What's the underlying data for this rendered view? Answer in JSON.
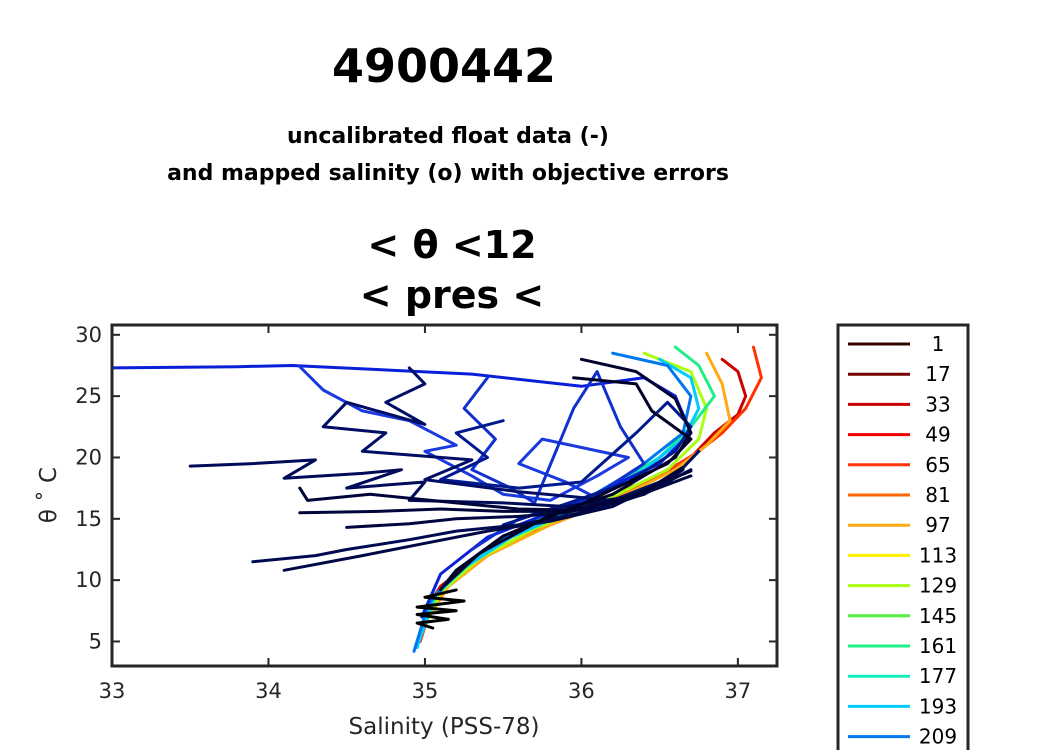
{
  "title": "4900442",
  "subtitle_lines": [
    "uncalibrated float data (-)",
    "and mapped salinity (o) with objective errors"
  ],
  "plot_title_lines": [
    "< θ <12",
    "< pres <"
  ],
  "chart_data": {
    "type": "line",
    "xlabel": "Salinity (PSS-78)",
    "ylabel": "θ ˚ C",
    "xlim": [
      33,
      37.25
    ],
    "ylim": [
      3,
      30.8
    ],
    "xticks": [
      33,
      34,
      35,
      36,
      37
    ],
    "yticks": [
      5,
      10,
      15,
      20,
      25,
      30
    ],
    "legend_position": "right",
    "legend": [
      {
        "label": "1",
        "color": "#330000"
      },
      {
        "label": "17",
        "color": "#770000"
      },
      {
        "label": "33",
        "color": "#cc0000"
      },
      {
        "label": "49",
        "color": "#ee0000"
      },
      {
        "label": "65",
        "color": "#ff3300"
      },
      {
        "label": "81",
        "color": "#ff6600"
      },
      {
        "label": "97",
        "color": "#ffaa11"
      },
      {
        "label": "113",
        "color": "#ffee00"
      },
      {
        "label": "129",
        "color": "#aaff11"
      },
      {
        "label": "145",
        "color": "#55ee44"
      },
      {
        "label": "161",
        "color": "#22ee88"
      },
      {
        "label": "177",
        "color": "#11eebb"
      },
      {
        "label": "193",
        "color": "#00ccff"
      },
      {
        "label": "209",
        "color": "#0077ee"
      }
    ],
    "series": [
      {
        "color": "#cc0000",
        "points": [
          [
            36.9,
            28
          ],
          [
            37.0,
            27
          ],
          [
            37.05,
            25
          ],
          [
            37.0,
            23.5
          ],
          [
            36.85,
            22
          ],
          [
            36.7,
            20
          ],
          [
            36.4,
            18
          ],
          [
            36.0,
            16
          ],
          [
            35.6,
            14
          ],
          [
            35.3,
            11.5
          ],
          [
            35.1,
            9.5
          ],
          [
            35.0,
            7.5
          ],
          [
            34.98,
            5.5
          ]
        ]
      },
      {
        "color": "#ff3300",
        "points": [
          [
            37.1,
            29
          ],
          [
            37.15,
            26.5
          ],
          [
            37.05,
            24
          ],
          [
            36.9,
            22
          ],
          [
            36.75,
            20.5
          ],
          [
            36.5,
            18.5
          ],
          [
            36.1,
            16
          ],
          [
            35.7,
            14
          ],
          [
            35.4,
            12
          ],
          [
            35.15,
            9.5
          ],
          [
            35.02,
            7
          ],
          [
            34.97,
            5
          ]
        ]
      },
      {
        "color": "#ffaa11",
        "points": [
          [
            36.8,
            28.5
          ],
          [
            36.9,
            26
          ],
          [
            36.95,
            23
          ],
          [
            36.8,
            21
          ],
          [
            36.6,
            19
          ],
          [
            36.2,
            16.5
          ],
          [
            35.8,
            14.5
          ],
          [
            35.4,
            12
          ],
          [
            35.15,
            9.5
          ],
          [
            35.0,
            6.5
          ]
        ]
      },
      {
        "color": "#aaff11",
        "points": [
          [
            36.4,
            28.5
          ],
          [
            36.7,
            27
          ],
          [
            36.8,
            24
          ],
          [
            36.75,
            21.5
          ],
          [
            36.55,
            19
          ],
          [
            36.15,
            16.5
          ],
          [
            35.7,
            14.2
          ],
          [
            35.35,
            11.8
          ],
          [
            35.1,
            9
          ],
          [
            34.98,
            6
          ]
        ]
      },
      {
        "color": "#22ee88",
        "points": [
          [
            36.6,
            29
          ],
          [
            36.75,
            27.5
          ],
          [
            36.85,
            25
          ],
          [
            36.7,
            22.5
          ],
          [
            36.5,
            20
          ],
          [
            36.1,
            17
          ],
          [
            35.65,
            14.5
          ],
          [
            35.3,
            11.5
          ],
          [
            35.08,
            9
          ],
          [
            34.96,
            5
          ]
        ]
      },
      {
        "color": "#00ccff",
        "points": [
          [
            36.5,
            28
          ],
          [
            36.7,
            26.5
          ],
          [
            36.75,
            24
          ],
          [
            36.65,
            21.5
          ],
          [
            36.4,
            19
          ],
          [
            36.0,
            16
          ],
          [
            35.55,
            13.5
          ],
          [
            35.25,
            11
          ],
          [
            35.05,
            8.5
          ],
          [
            34.95,
            4.5
          ]
        ]
      },
      {
        "color": "#0077ee",
        "points": [
          [
            36.2,
            28.5
          ],
          [
            36.55,
            27.5
          ],
          [
            36.7,
            25
          ],
          [
            36.65,
            22
          ],
          [
            36.35,
            19
          ],
          [
            35.95,
            16
          ],
          [
            35.5,
            13.5
          ],
          [
            35.2,
            10.8
          ],
          [
            35.02,
            8
          ],
          [
            34.93,
            4.2
          ]
        ]
      },
      {
        "color": "#0a1fd8",
        "points": [
          [
            33.0,
            27.3
          ],
          [
            33.8,
            27.4
          ],
          [
            34.15,
            27.5
          ],
          [
            35.3,
            26.8
          ],
          [
            36.0,
            25.8
          ],
          [
            36.4,
            26.5
          ],
          [
            36.6,
            25
          ],
          [
            36.7,
            22
          ],
          [
            36.5,
            19.5
          ],
          [
            36.0,
            16.5
          ],
          [
            35.4,
            13.5
          ],
          [
            35.1,
            10.5
          ],
          [
            34.98,
            7
          ]
        ]
      },
      {
        "color": "#1a3ae0",
        "points": [
          [
            34.2,
            27.4
          ],
          [
            34.35,
            25.5
          ],
          [
            34.6,
            23.8
          ],
          [
            34.9,
            23
          ],
          [
            35.2,
            21
          ],
          [
            35.0,
            20.5
          ],
          [
            35.3,
            18.5
          ],
          [
            35.5,
            17
          ],
          [
            35.8,
            16.5
          ],
          [
            36.1,
            18.5
          ],
          [
            36.3,
            20
          ],
          [
            35.75,
            21.5
          ],
          [
            35.6,
            19.5
          ],
          [
            35.9,
            18
          ],
          [
            36.2,
            16
          ]
        ]
      },
      {
        "color": "#1030d0",
        "points": [
          [
            35.4,
            26.5
          ],
          [
            35.25,
            24
          ],
          [
            35.45,
            21.5
          ],
          [
            35.3,
            19
          ],
          [
            35.55,
            17.5
          ],
          [
            35.7,
            16.3
          ],
          [
            35.95,
            24
          ],
          [
            36.1,
            27
          ],
          [
            36.25,
            22.5
          ],
          [
            36.4,
            19.5
          ],
          [
            36.1,
            17
          ],
          [
            35.6,
            15
          ],
          [
            35.3,
            12.5
          ]
        ]
      },
      {
        "color": "#001a8e",
        "points": [
          [
            35.5,
            23
          ],
          [
            35.2,
            22
          ],
          [
            35.4,
            20
          ],
          [
            35.1,
            18.2
          ],
          [
            35.6,
            17.5
          ],
          [
            36.0,
            18
          ],
          [
            36.35,
            22
          ],
          [
            36.55,
            24.5
          ],
          [
            36.7,
            22.5
          ],
          [
            36.6,
            20.5
          ],
          [
            36.3,
            18
          ],
          [
            35.9,
            16.2
          ],
          [
            35.5,
            14.5
          ]
        ]
      },
      {
        "color": "#000e66",
        "points": [
          [
            34.9,
            27.3
          ],
          [
            35.0,
            26
          ],
          [
            34.75,
            24.5
          ],
          [
            35.0,
            22.7
          ],
          [
            34.5,
            24.5
          ],
          [
            34.35,
            22.5
          ],
          [
            34.75,
            22
          ],
          [
            34.6,
            20.5
          ],
          [
            35.3,
            19.8
          ],
          [
            35.0,
            18.2
          ],
          [
            35.6,
            17.2
          ],
          [
            36.2,
            16.5
          ],
          [
            36.6,
            18.5
          ],
          [
            36.75,
            20.5
          ]
        ]
      },
      {
        "color": "#000b5a",
        "points": [
          [
            33.5,
            19.3
          ],
          [
            33.9,
            19.5
          ],
          [
            34.3,
            19.8
          ],
          [
            34.1,
            18.3
          ],
          [
            34.6,
            18.7
          ],
          [
            34.85,
            19
          ],
          [
            34.5,
            17.5
          ],
          [
            35.0,
            18
          ],
          [
            34.9,
            16.5
          ],
          [
            35.5,
            16.3
          ],
          [
            35.9,
            16
          ],
          [
            36.4,
            17
          ],
          [
            36.7,
            19
          ]
        ]
      },
      {
        "color": "#000a50",
        "points": [
          [
            33.9,
            11.5
          ],
          [
            34.3,
            12
          ],
          [
            34.5,
            12.5
          ],
          [
            34.9,
            13.3
          ],
          [
            35.2,
            14
          ],
          [
            35.6,
            14.5
          ],
          [
            36.0,
            15.5
          ],
          [
            36.4,
            17
          ],
          [
            36.65,
            19
          ]
        ]
      },
      {
        "color": "#000845",
        "points": [
          [
            34.1,
            10.8
          ],
          [
            34.6,
            12
          ],
          [
            35.0,
            13
          ],
          [
            35.4,
            14
          ],
          [
            35.8,
            14.8
          ],
          [
            36.2,
            16
          ],
          [
            36.6,
            18.5
          ]
        ]
      },
      {
        "color": "#000640",
        "points": [
          [
            34.5,
            14.3
          ],
          [
            34.9,
            14.6
          ],
          [
            35.2,
            15
          ],
          [
            35.6,
            15.2
          ],
          [
            35.9,
            15.5
          ],
          [
            36.3,
            16.6
          ],
          [
            36.7,
            18.5
          ]
        ]
      },
      {
        "color": "#00053a",
        "points": [
          [
            34.2,
            15.5
          ],
          [
            34.7,
            15.6
          ],
          [
            35.1,
            15.8
          ],
          [
            35.5,
            15.6
          ],
          [
            35.9,
            15.6
          ],
          [
            36.3,
            16.8
          ],
          [
            36.7,
            18.9
          ]
        ]
      },
      {
        "color": "#00043a",
        "points": [
          [
            34.2,
            17.5
          ],
          [
            34.25,
            16.5
          ],
          [
            34.65,
            17
          ],
          [
            35.2,
            16.3
          ],
          [
            35.6,
            15.8
          ],
          [
            36.0,
            15.7
          ],
          [
            36.4,
            17.2
          ],
          [
            36.65,
            19.2
          ]
        ]
      },
      {
        "color": "#000330",
        "points": [
          [
            36.0,
            28
          ],
          [
            36.35,
            27
          ],
          [
            36.6,
            24.8
          ],
          [
            36.7,
            22
          ],
          [
            36.6,
            20
          ],
          [
            36.2,
            17
          ],
          [
            35.8,
            15.3
          ],
          [
            35.35,
            12.2
          ],
          [
            35.12,
            9.5
          ]
        ]
      },
      {
        "color": "#000228",
        "points": [
          [
            35.95,
            26.5
          ],
          [
            36.35,
            26
          ],
          [
            36.45,
            23.8
          ],
          [
            36.7,
            21.5
          ],
          [
            36.55,
            19.5
          ],
          [
            36.0,
            16.2
          ],
          [
            35.5,
            13.6
          ],
          [
            35.2,
            10.8
          ],
          [
            35.1,
            9.2
          ]
        ]
      },
      {
        "color": "#000000",
        "points": [
          [
            35.2,
            9.2
          ],
          [
            35.0,
            8.6
          ],
          [
            35.25,
            8.3
          ],
          [
            34.95,
            7.8
          ],
          [
            35.2,
            7.5
          ],
          [
            34.95,
            7.2
          ],
          [
            35.15,
            6.8
          ],
          [
            34.95,
            6.5
          ],
          [
            35.05,
            6.1
          ]
        ]
      }
    ]
  }
}
